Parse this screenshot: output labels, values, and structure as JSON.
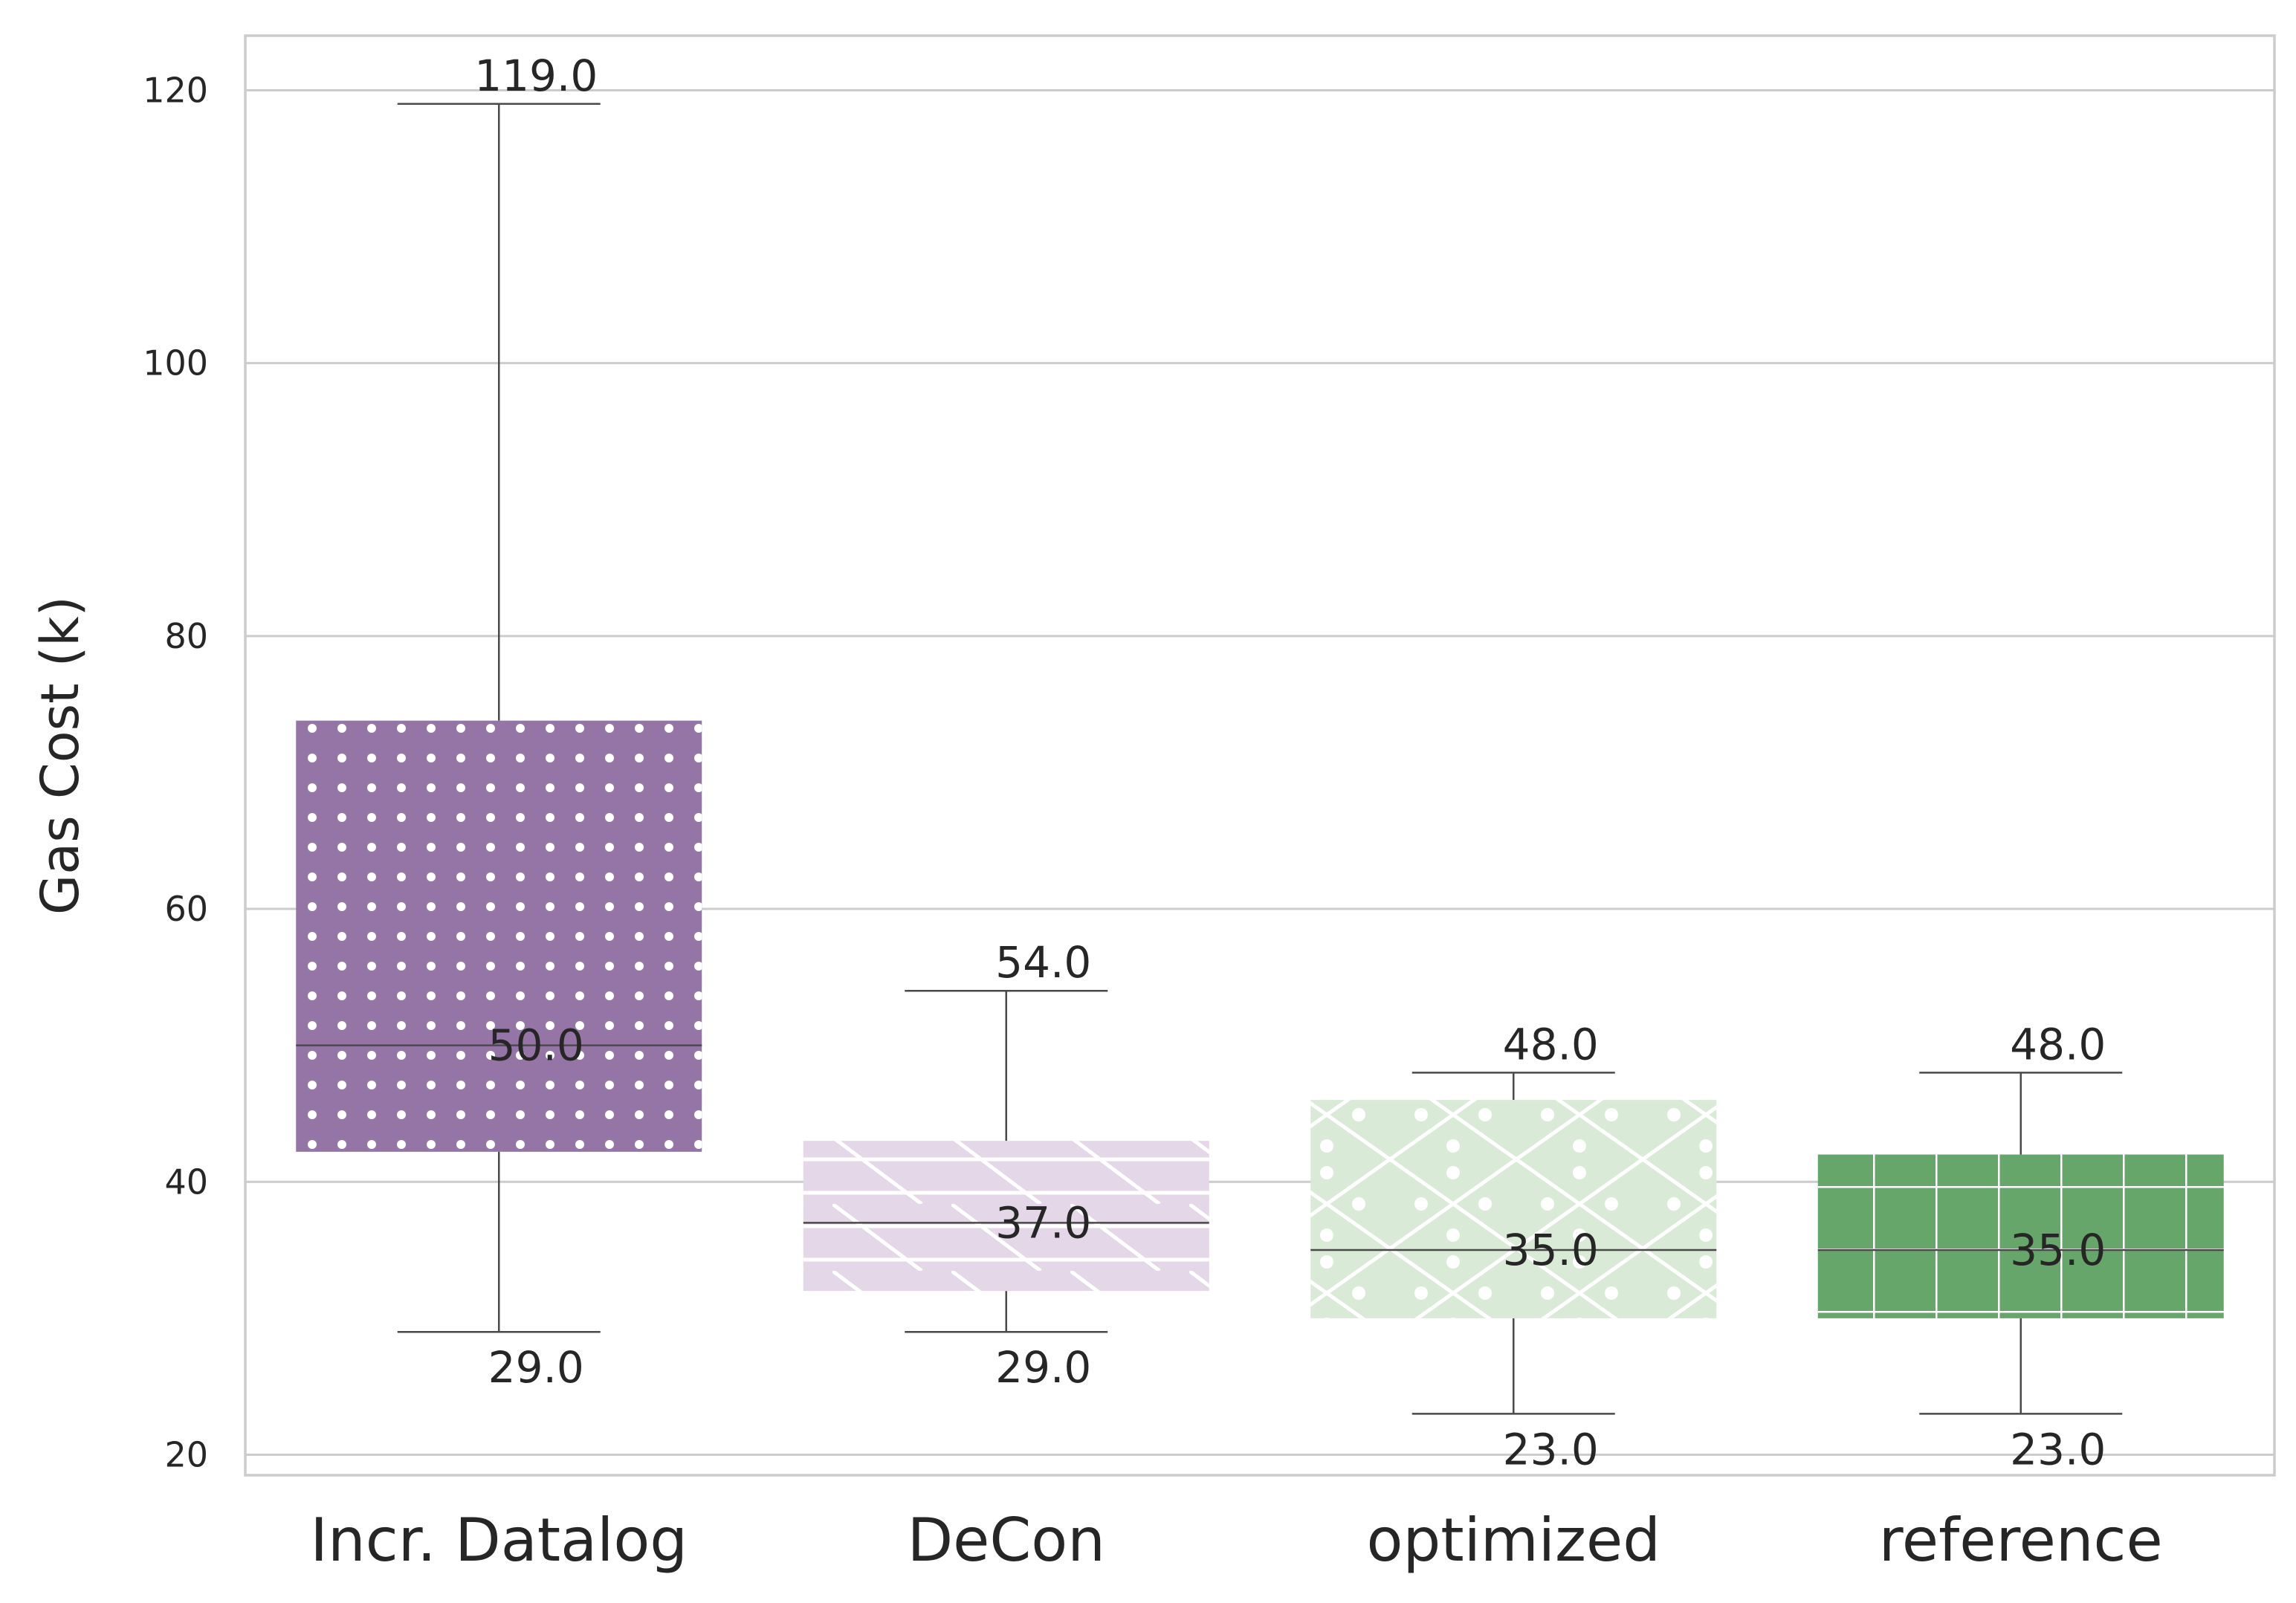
{
  "chart_data": {
    "type": "box",
    "title": "",
    "xlabel": "",
    "ylabel": "Gas Cost (k)",
    "ylim": [
      18.5,
      124
    ],
    "yticks": [
      20,
      40,
      60,
      80,
      100,
      120
    ],
    "grid": "horizontal",
    "categories": [
      "Incr. Datalog",
      "DeCon",
      "optimized",
      "reference"
    ],
    "boxes": [
      {
        "category": "Incr. Datalog",
        "whisker_low": 29.0,
        "q1": 42.2,
        "median": 50.0,
        "q3": 73.8,
        "whisker_high": 119.0,
        "low_label": "29.0",
        "median_label": "50.0",
        "high_label": "119.0",
        "color": "#9575a6",
        "pattern": "dots"
      },
      {
        "category": "DeCon",
        "whisker_low": 29.0,
        "q1": 32.0,
        "median": 37.0,
        "q3": 43.0,
        "whisker_high": 54.0,
        "low_label": "29.0",
        "median_label": "37.0",
        "high_label": "54.0",
        "color": "#e4d7e7",
        "pattern": "diagonal-hlines"
      },
      {
        "category": "optimized",
        "whisker_low": 23.0,
        "q1": 30.0,
        "median": 35.0,
        "q3": 46.0,
        "whisker_high": 48.0,
        "low_label": "23.0",
        "median_label": "35.0",
        "high_label": "48.0",
        "color": "#d9ebd6",
        "pattern": "crosshatch-dots"
      },
      {
        "category": "reference",
        "whisker_low": 23.0,
        "q1": 30.0,
        "median": 35.0,
        "q3": 42.0,
        "whisker_high": 48.0,
        "low_label": "23.0",
        "median_label": "35.0",
        "high_label": "48.0",
        "color": "#67a66b",
        "pattern": "grid"
      }
    ],
    "colors": {
      "grid": "#cccccc",
      "frame": "#cccccc",
      "whisker": "#4a4a4a",
      "pattern_line": "#ffffff"
    }
  }
}
